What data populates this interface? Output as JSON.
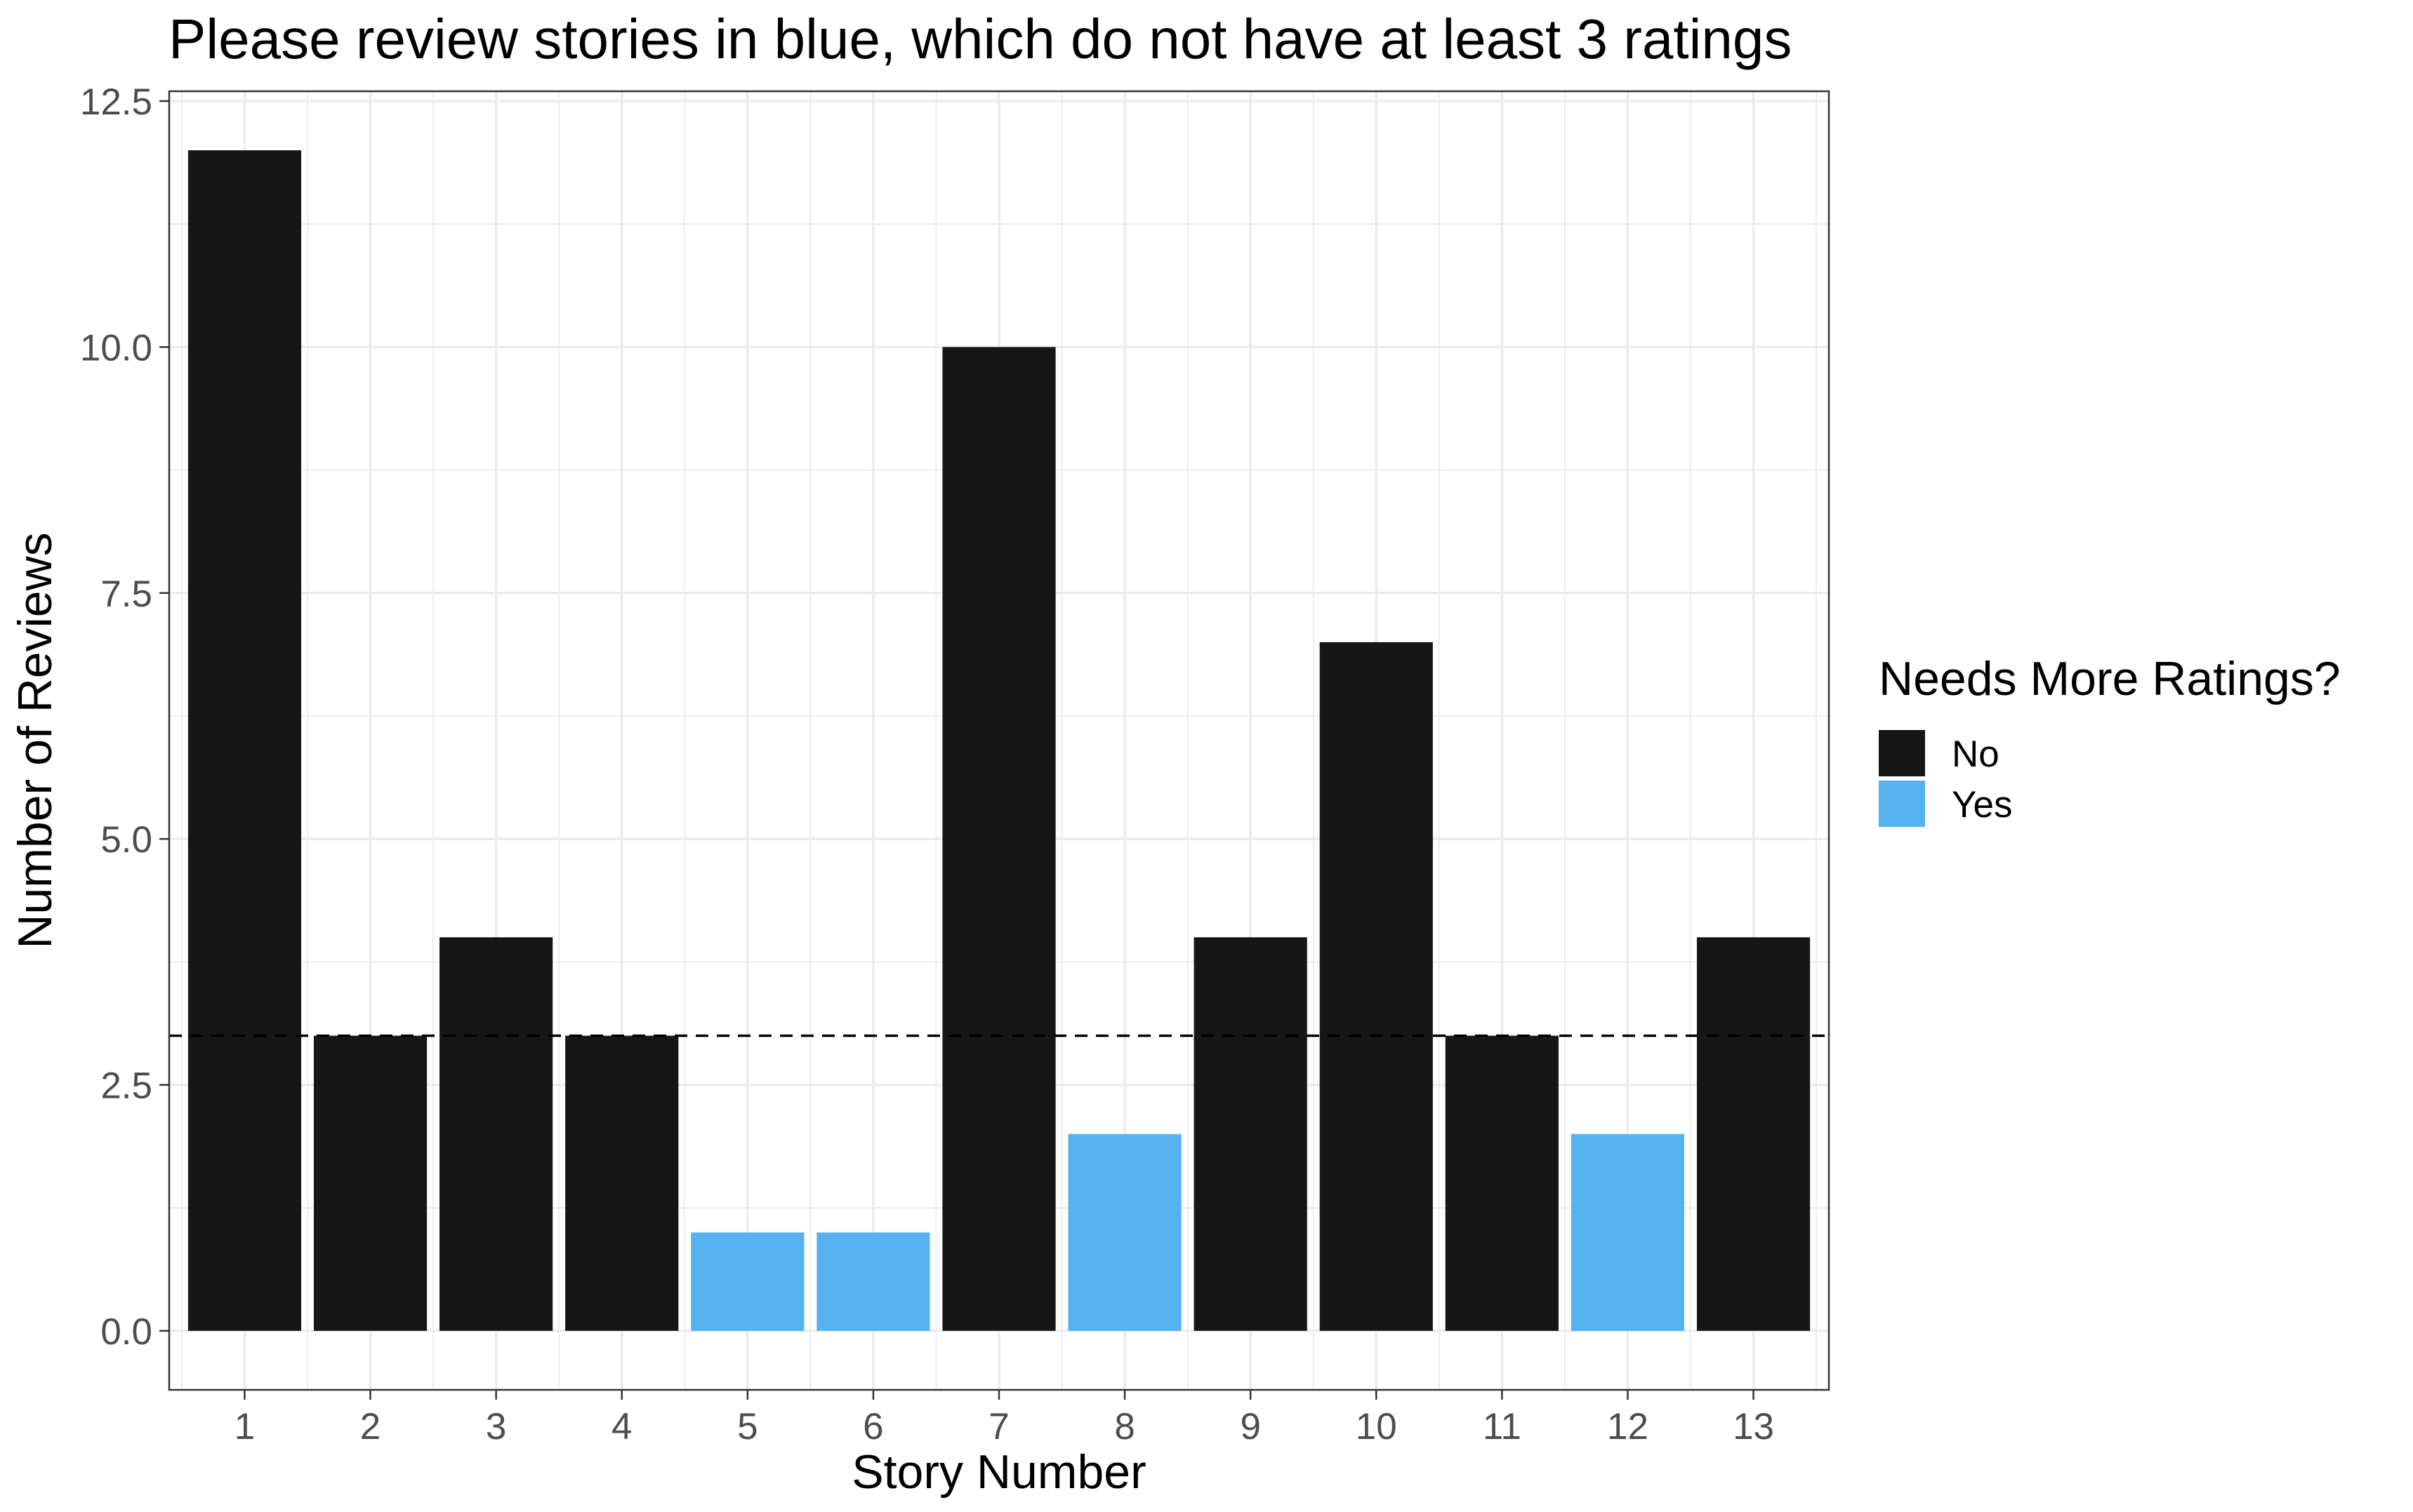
{
  "chart_data": {
    "type": "bar",
    "title": "Please review stories in blue, which do not have at least 3 ratings",
    "xlabel": "Story Number",
    "ylabel": "Number of Reviews",
    "categories": [
      "1",
      "2",
      "3",
      "4",
      "5",
      "6",
      "7",
      "8",
      "9",
      "10",
      "11",
      "12",
      "13"
    ],
    "values": [
      12,
      3,
      4,
      3,
      1,
      1,
      10,
      2,
      4,
      7,
      3,
      2,
      4
    ],
    "fill_group": [
      "No",
      "No",
      "No",
      "No",
      "Yes",
      "Yes",
      "No",
      "Yes",
      "No",
      "No",
      "No",
      "Yes",
      "No"
    ],
    "ylim": [
      -0.6,
      12.6
    ],
    "y_ticks": [
      "0.0",
      "2.5",
      "5.0",
      "7.5",
      "10.0",
      "12.5"
    ],
    "y_tick_values": [
      0,
      2.5,
      5,
      7.5,
      10,
      12.5
    ],
    "reference_line": {
      "y": 3,
      "style": "dashed"
    },
    "legend": {
      "title": "Needs More Ratings?",
      "placement": "right",
      "items": [
        {
          "label": "No",
          "color": "#161616"
        },
        {
          "label": "Yes",
          "color": "#56b1f1"
        }
      ]
    },
    "grid": true
  }
}
